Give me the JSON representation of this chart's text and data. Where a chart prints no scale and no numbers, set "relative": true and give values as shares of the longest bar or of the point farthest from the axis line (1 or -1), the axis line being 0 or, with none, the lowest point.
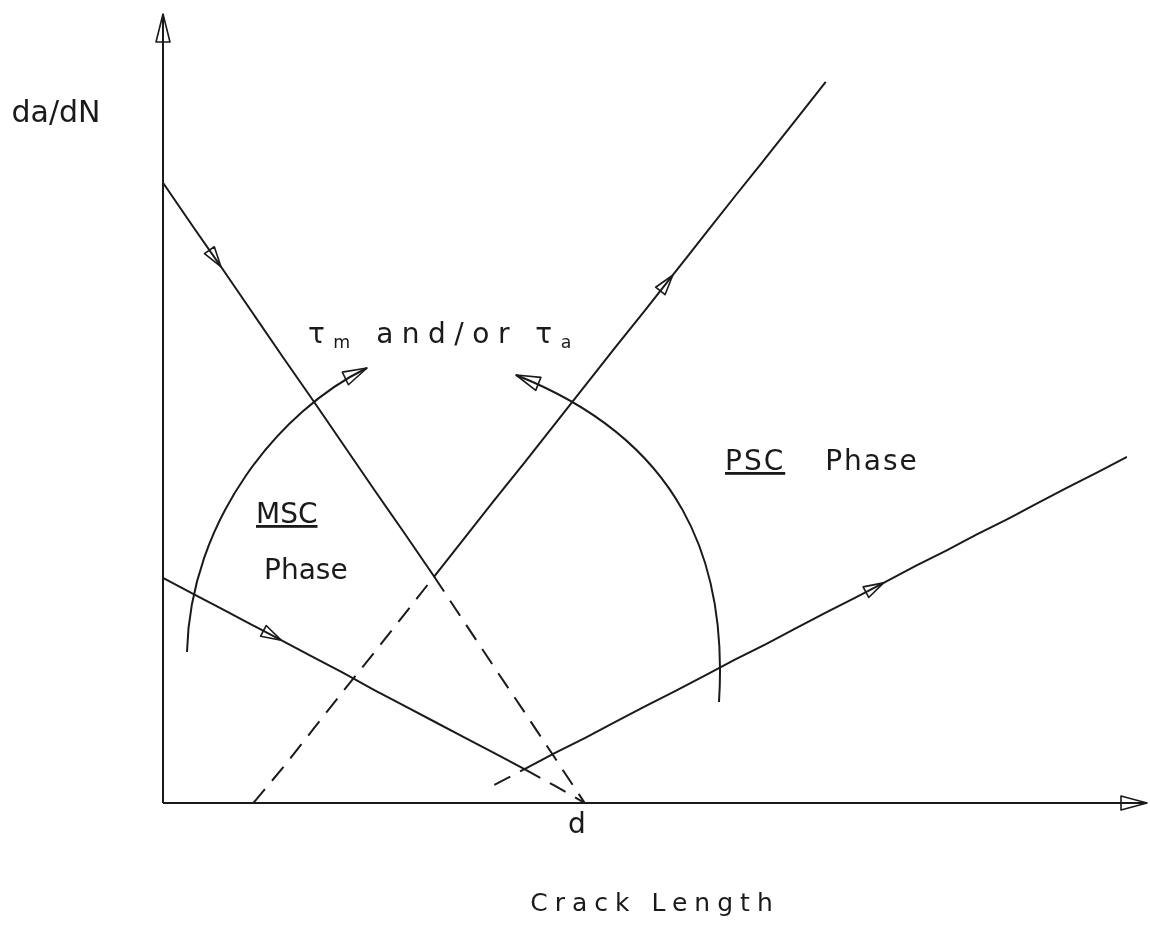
{
  "chart_data": {
    "type": "line",
    "relative": true,
    "xlabel": "Crack Length",
    "ylabel": "da/dN",
    "annotations": [
      "τ$_{m}$ and/or τ$_{a}$",
      "MSC Phase",
      "PSC Phase",
      "d"
    ],
    "marker": "none",
    "categories": [
      null,
      null,
      null,
      null,
      null,
      null,
      null,
      null,
      null,
      null,
      null,
      null,
      null,
      null,
      null,
      null,
      null,
      null,
      null,
      null,
      null,
      null,
      null,
      null,
      null,
      null,
      null,
      null,
      null,
      null,
      null,
      null,
      null
    ],
    "series": [
      {
        "color": "#1a1a1a",
        "values": [
          0.86,
          0.799,
          0.739,
          0.678,
          0.617,
          0.557,
          0.496,
          0.435,
          0.375,
          0.314,
          0.367,
          0.42,
          0.472,
          0.525,
          0.578,
          0.631,
          0.683,
          0.736,
          0.789,
          0.842,
          0.894,
          0.947,
          1.0,
          null,
          null,
          null,
          null,
          null,
          null,
          null,
          null,
          null,
          null
        ]
      },
      {
        "color": "#1a1a1a",
        "values": [
          0.312,
          0.29,
          0.268,
          0.246,
          0.224,
          0.202,
          0.18,
          0.157,
          0.135,
          0.113,
          0.091,
          0.069,
          0.047,
          0.069,
          0.09,
          0.112,
          0.134,
          0.155,
          0.177,
          0.199,
          0.22,
          0.242,
          0.264,
          0.285,
          0.307,
          0.329,
          0.35,
          0.372,
          0.393,
          0.415,
          0.437,
          0.458,
          0.48
        ]
      },
      {
        "color": "#1a1a1a",
        "line_style": "dashed",
        "values": [
          null,
          null,
          null,
          0,
          0.05,
          0.103,
          0.156,
          0.208,
          0.261,
          0.314,
          null,
          null,
          null,
          null,
          null,
          null,
          null,
          null,
          null,
          null,
          null,
          null,
          null,
          null,
          null,
          null,
          null,
          null,
          null,
          null,
          null,
          null,
          null
        ]
      },
      {
        "color": "#1a1a1a",
        "line_style": "dashed",
        "values": [
          null,
          null,
          null,
          null,
          null,
          null,
          null,
          null,
          null,
          0.314,
          0.251,
          0.188,
          0.126,
          0.063,
          0,
          null,
          null,
          null,
          null,
          null,
          null,
          null,
          null,
          null,
          null,
          null,
          null,
          null,
          null,
          null,
          null,
          null,
          null
        ]
      },
      {
        "color": "#1a1a1a",
        "line_style": "dashed",
        "values": [
          null,
          null,
          null,
          null,
          null,
          null,
          null,
          null,
          null,
          null,
          null,
          0.025,
          0.047,
          null,
          null,
          null,
          null,
          null,
          null,
          null,
          null,
          null,
          null,
          null,
          null,
          null,
          null,
          null,
          null,
          null,
          null,
          null,
          null
        ]
      },
      {
        "color": "#1a1a1a",
        "line_style": "dashed",
        "values": [
          null,
          null,
          null,
          null,
          null,
          null,
          null,
          null,
          null,
          null,
          null,
          null,
          0.047,
          0.024,
          0,
          null,
          null,
          null,
          null,
          null,
          null,
          null,
          null,
          null,
          null,
          null,
          null,
          null,
          null,
          null,
          null,
          null,
          null
        ]
      }
    ]
  }
}
